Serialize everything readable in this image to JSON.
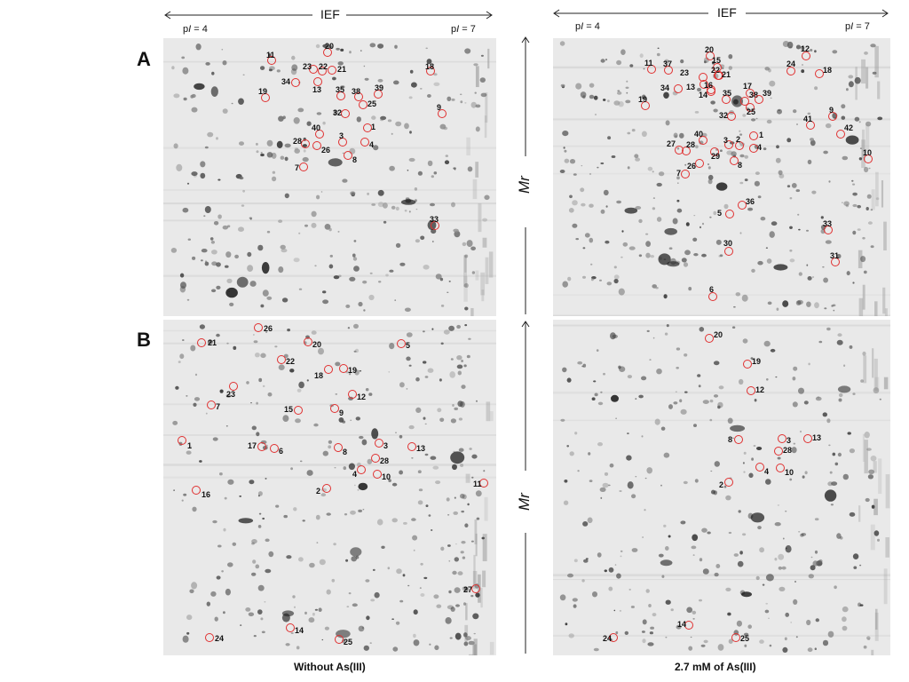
{
  "ief": {
    "label": "IEF",
    "pi_start": "4",
    "pi_end": "7"
  },
  "mr_label": "Mr",
  "panels": [
    {
      "letter": "A",
      "left_spots": [
        "11",
        "20",
        "23",
        "22",
        "21",
        "18",
        "34",
        "13",
        "19",
        "35",
        "38",
        "39",
        "25",
        "32",
        "9",
        "40",
        "1",
        "28",
        "3",
        "4",
        "26",
        "8",
        "7",
        "33"
      ],
      "right_spots": [
        "20",
        "12",
        "11",
        "37",
        "24",
        "15",
        "18",
        "23",
        "22",
        "21",
        "13",
        "17",
        "34",
        "14",
        "16",
        "35",
        "38",
        "39",
        "19",
        "32",
        "25",
        "9",
        "41",
        "40",
        "3",
        "2",
        "1",
        "42",
        "27",
        "28",
        "29",
        "4",
        "10",
        "26",
        "8",
        "7",
        "36",
        "5",
        "33",
        "30",
        "31",
        "6"
      ]
    },
    {
      "letter": "B",
      "left_spots": [
        "26",
        "21",
        "20",
        "5",
        "22",
        "18",
        "19",
        "23",
        "12",
        "7",
        "15",
        "9",
        "1",
        "17",
        "6",
        "8",
        "3",
        "13",
        "28",
        "4",
        "10",
        "2",
        "11",
        "16",
        "27",
        "14",
        "24",
        "25"
      ],
      "right_spots": [
        "20",
        "19",
        "12",
        "8",
        "3",
        "13",
        "28",
        "4",
        "10",
        "2",
        "14",
        "24",
        "25"
      ]
    }
  ],
  "captions": {
    "left": "Without As(III)",
    "right": "2.7 mM of As(III)"
  }
}
